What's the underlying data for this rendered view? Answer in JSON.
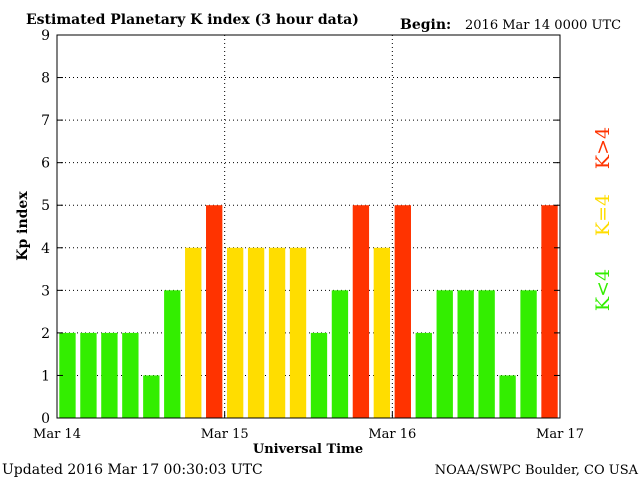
{
  "header": {
    "title": "Estimated Planetary K index (3 hour data)",
    "begin_label": "Begin:",
    "begin_value": "2016 Mar 14 0000 UTC"
  },
  "footer": {
    "updated": "Updated 2016 Mar 17 00:30:03 UTC",
    "source": "NOAA/SWPC Boulder, CO USA"
  },
  "legend": {
    "items": [
      {
        "label": "K>4",
        "color": "#ff3300"
      },
      {
        "label": "K=4",
        "color": "#ffdd00"
      },
      {
        "label": "K<4",
        "color": "#33ee00"
      }
    ]
  },
  "colors": {
    "low": "#33ee00",
    "moderate": "#ffdd00",
    "storm": "#ff3300",
    "axis": "#000000",
    "grid": "#000000"
  },
  "chart_data": {
    "type": "bar",
    "title": "Estimated Planetary K index (3 hour data)",
    "xlabel": "Universal Time",
    "ylabel": "Kp index",
    "ylim": [
      0,
      9
    ],
    "yticks": [
      0,
      1,
      2,
      3,
      4,
      5,
      6,
      7,
      8,
      9
    ],
    "x_tick_labels": [
      "Mar 14",
      "Mar 15",
      "Mar 16",
      "Mar 17"
    ],
    "grid": true,
    "legend_position": "right",
    "bar_interval_hours": 3,
    "values": [
      2,
      2,
      2,
      2,
      1,
      3,
      4,
      5,
      4,
      4,
      4,
      4,
      2,
      3,
      5,
      4,
      5,
      2,
      3,
      3,
      3,
      1,
      3,
      5
    ]
  }
}
